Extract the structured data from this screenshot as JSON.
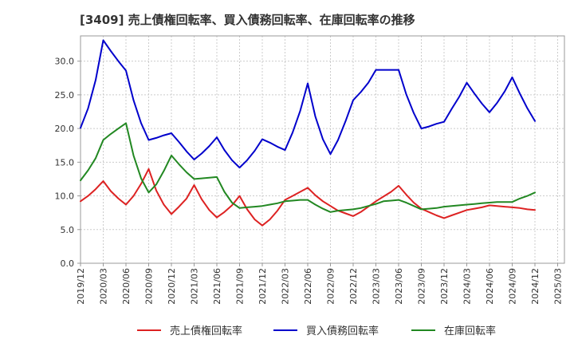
{
  "chart_data": {
    "type": "line",
    "title": "[3409]  売上債権回転率、買入債務回転率、在庫回転率の推移",
    "xlabel": "",
    "ylabel": "",
    "ylim": [
      0,
      33.75
    ],
    "yticks": [
      "0.0",
      "5.0",
      "10.0",
      "15.0",
      "20.0",
      "25.0",
      "30.0"
    ],
    "ytick_values": [
      0,
      5,
      10,
      15,
      20,
      25,
      30
    ],
    "xtick_labels": [
      "2019/12",
      "2020/03",
      "2020/06",
      "2020/09",
      "2020/12",
      "2021/03",
      "2021/06",
      "2021/09",
      "2021/12",
      "2022/03",
      "2022/06",
      "2022/09",
      "2022/12",
      "2023/03",
      "2023/06",
      "2023/09",
      "2023/12",
      "2024/03",
      "2024/06",
      "2024/09",
      "2024/12",
      "2025/03"
    ],
    "x_months": [
      "2019/12",
      "2020/01",
      "2020/02",
      "2020/03",
      "2020/04",
      "2020/05",
      "2020/06",
      "2020/07",
      "2020/08",
      "2020/09",
      "2020/10",
      "2020/11",
      "2020/12",
      "2021/01",
      "2021/02",
      "2021/03",
      "2021/04",
      "2021/05",
      "2021/06",
      "2021/07",
      "2021/08",
      "2021/09",
      "2021/10",
      "2021/11",
      "2021/12",
      "2022/01",
      "2022/02",
      "2022/03",
      "2022/04",
      "2022/05",
      "2022/06",
      "2022/07",
      "2022/08",
      "2022/09",
      "2022/10",
      "2022/11",
      "2022/12",
      "2023/01",
      "2023/02",
      "2023/03",
      "2023/04",
      "2023/05",
      "2023/06",
      "2023/07",
      "2023/08",
      "2023/09",
      "2023/10",
      "2023/11",
      "2023/12",
      "2024/01",
      "2024/02",
      "2024/03",
      "2024/04",
      "2024/05",
      "2024/06",
      "2024/07",
      "2024/08",
      "2024/09",
      "2024/10",
      "2024/11",
      "2024/12"
    ],
    "grid": true,
    "legend_position": "bottom",
    "series": [
      {
        "name": "売上債権回転率",
        "color": "#dd2222",
        "values": [
          9.2,
          10.0,
          11.0,
          12.2,
          10.7,
          9.6,
          8.7,
          10.0,
          11.8,
          14.0,
          10.8,
          8.7,
          7.3,
          8.4,
          9.6,
          11.6,
          9.5,
          7.9,
          6.8,
          7.6,
          8.6,
          10.0,
          8.0,
          6.5,
          5.6,
          6.5,
          7.8,
          9.4,
          10.0,
          10.6,
          11.2,
          10.1,
          9.2,
          8.5,
          7.8,
          7.4,
          7.0,
          7.6,
          8.4,
          9.2,
          9.9,
          10.6,
          11.5,
          10.2,
          9.0,
          8.1,
          7.6,
          7.1,
          6.7,
          7.1,
          7.5,
          7.9,
          8.1,
          8.3,
          8.6,
          8.5,
          8.4,
          8.3,
          8.2,
          8.0,
          7.9
        ]
      },
      {
        "name": "買入債務回転率",
        "color": "#0000cc",
        "values": [
          20.1,
          23.0,
          27.2,
          33.1,
          31.5,
          30.0,
          28.6,
          24.2,
          20.8,
          18.3,
          18.6,
          19.0,
          19.3,
          18.0,
          16.6,
          15.4,
          16.3,
          17.4,
          18.7,
          16.8,
          15.3,
          14.2,
          15.3,
          16.7,
          18.4,
          17.9,
          17.3,
          16.8,
          19.4,
          22.6,
          26.7,
          21.8,
          18.4,
          16.2,
          18.3,
          21.1,
          24.2,
          25.4,
          26.8,
          28.7,
          28.7,
          28.7,
          28.7,
          25.1,
          22.3,
          20.0,
          20.3,
          20.7,
          21.0,
          22.9,
          24.7,
          26.8,
          25.2,
          23.7,
          22.4,
          23.8,
          25.5,
          27.6,
          25.2,
          23.0,
          21.1
        ]
      },
      {
        "name": "在庫回転率",
        "color": "#228822",
        "values": [
          12.3,
          13.8,
          15.6,
          18.3,
          19.2,
          20.0,
          20.8,
          16.0,
          12.6,
          10.5,
          11.7,
          13.7,
          16.0,
          14.7,
          13.5,
          12.5,
          12.6,
          12.7,
          12.8,
          10.6,
          9.0,
          8.2,
          8.3,
          8.4,
          8.5,
          8.7,
          8.9,
          9.2,
          9.3,
          9.4,
          9.4,
          8.7,
          8.1,
          7.6,
          7.8,
          7.9,
          8.0,
          8.2,
          8.5,
          8.8,
          9.2,
          9.3,
          9.4,
          9.0,
          8.5,
          8.0,
          8.1,
          8.2,
          8.4,
          8.5,
          8.6,
          8.7,
          8.8,
          8.9,
          9.0,
          9.1,
          9.1,
          9.1,
          9.6,
          10.0,
          10.5
        ]
      }
    ]
  }
}
